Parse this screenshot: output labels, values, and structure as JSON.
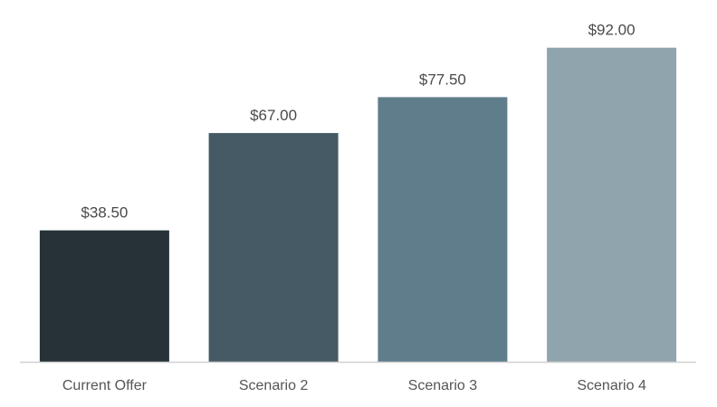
{
  "chart_data": {
    "type": "bar",
    "categories": [
      "Current Offer",
      "Scenario 2",
      "Scenario 3",
      "Scenario 4"
    ],
    "values": [
      38.5,
      67.0,
      77.5,
      92.0
    ],
    "value_labels": [
      "$38.50",
      "$67.00",
      "$77.50",
      "$92.00"
    ],
    "colors": [
      "#263238",
      "#455a64",
      "#607d8b",
      "#90a4ae"
    ],
    "axis_color": "#d0d0d0",
    "ylim": [
      0,
      100
    ],
    "grid": false,
    "legend": "none",
    "title": "",
    "xlabel": "",
    "ylabel": ""
  }
}
